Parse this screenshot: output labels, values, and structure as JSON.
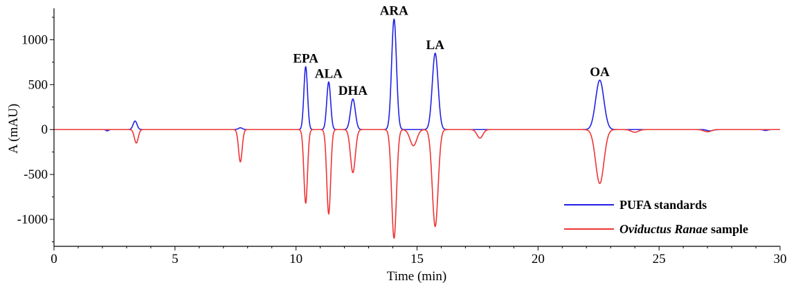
{
  "chart_data": {
    "type": "line",
    "xlabel": "Time (min)",
    "ylabel": "A (mAU)",
    "xlim": [
      0,
      30
    ],
    "ylim": [
      -1300,
      1350
    ],
    "xticks": [
      0,
      5,
      10,
      15,
      20,
      25,
      30
    ],
    "yticks": [
      -1000,
      -500,
      0,
      500,
      1000
    ],
    "grid": false,
    "legend_position": "bottom-right",
    "colors": {
      "standards": "#1f1fe6",
      "sample": "#ee3333",
      "axis": "#000000"
    },
    "legend": [
      {
        "series": "standards",
        "text_bold": "PUFA standards",
        "text_italic": "",
        "text_tail": ""
      },
      {
        "series": "sample",
        "text_bold": "",
        "text_italic": "Oviductus Ranae",
        "text_tail": " sample"
      }
    ],
    "peaks": [
      {
        "label": "EPA",
        "time": 10.4,
        "standards": 700,
        "sample": -820
      },
      {
        "label": "ALA",
        "time": 11.35,
        "standards": 530,
        "sample": -940
      },
      {
        "label": "DHA",
        "time": 12.35,
        "standards": 340,
        "sample": -480
      },
      {
        "label": "ARA",
        "time": 14.05,
        "standards": 1230,
        "sample": -1210
      },
      {
        "label": "LA",
        "time": 15.75,
        "standards": 850,
        "sample": -1080
      },
      {
        "label": "OA",
        "time": 22.55,
        "standards": 550,
        "sample": -600
      }
    ],
    "series": [
      {
        "key": "standards",
        "peaks": [
          {
            "t": 3.35,
            "a": 95,
            "w": 0.08
          },
          {
            "t": 7.7,
            "a": 20,
            "w": 0.08
          },
          {
            "t": 10.4,
            "a": 700,
            "w": 0.075
          },
          {
            "t": 11.35,
            "a": 530,
            "w": 0.08
          },
          {
            "t": 12.35,
            "a": 340,
            "w": 0.1
          },
          {
            "t": 14.05,
            "a": 1230,
            "w": 0.1
          },
          {
            "t": 15.75,
            "a": 850,
            "w": 0.12
          },
          {
            "t": 22.55,
            "a": 550,
            "w": 0.17
          },
          {
            "t": 2.2,
            "a": -15,
            "w": 0.05
          },
          {
            "t": 27.1,
            "a": -15,
            "w": 0.12
          },
          {
            "t": 29.4,
            "a": -10,
            "w": 0.08
          }
        ]
      },
      {
        "key": "sample",
        "peaks": [
          {
            "t": 3.4,
            "a": -150,
            "w": 0.08
          },
          {
            "t": 7.7,
            "a": -360,
            "w": 0.075
          },
          {
            "t": 10.4,
            "a": -820,
            "w": 0.075
          },
          {
            "t": 11.35,
            "a": -940,
            "w": 0.08
          },
          {
            "t": 12.35,
            "a": -480,
            "w": 0.1
          },
          {
            "t": 14.05,
            "a": -1210,
            "w": 0.1
          },
          {
            "t": 14.85,
            "a": -180,
            "w": 0.14
          },
          {
            "t": 15.75,
            "a": -1080,
            "w": 0.12
          },
          {
            "t": 17.6,
            "a": -95,
            "w": 0.12
          },
          {
            "t": 22.55,
            "a": -600,
            "w": 0.17
          },
          {
            "t": 24.0,
            "a": -30,
            "w": 0.15
          },
          {
            "t": 27.0,
            "a": -25,
            "w": 0.15
          }
        ]
      }
    ]
  }
}
